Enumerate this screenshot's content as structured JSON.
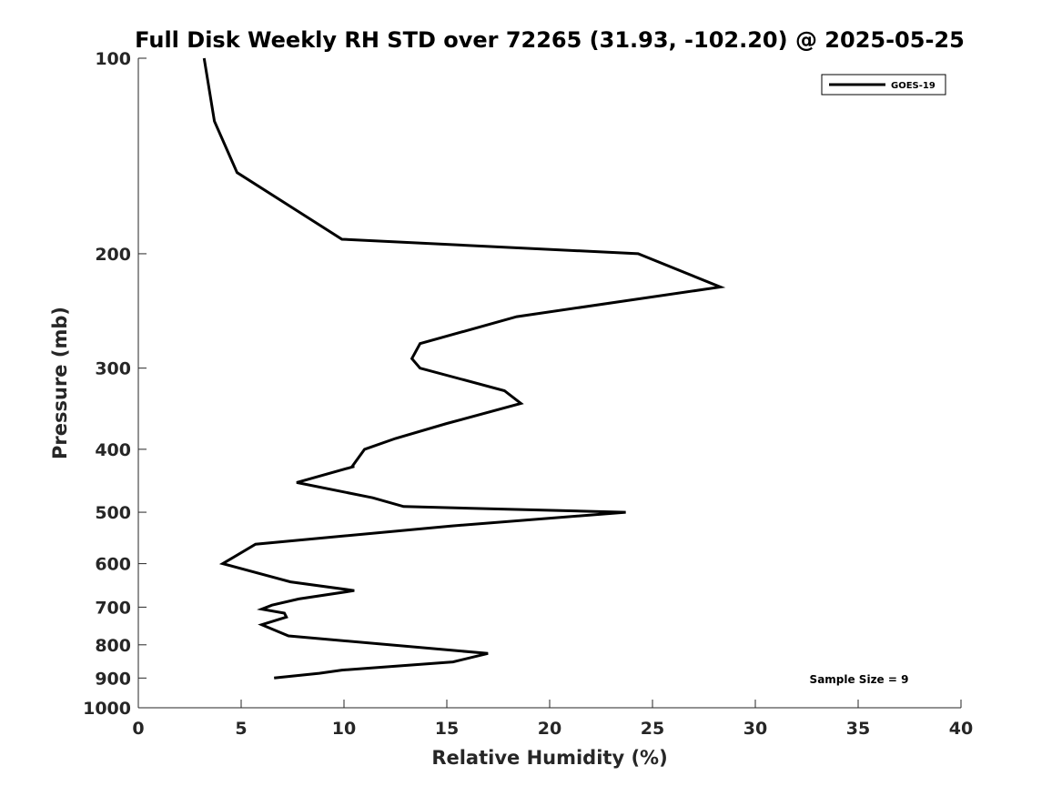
{
  "chart_data": {
    "type": "line",
    "title": "Full Disk Weekly RH STD over 72265 (31.93, -102.20) @ 2025-05-25",
    "xlabel": "Relative Humidity (%)",
    "ylabel": "Pressure (mb)",
    "xlim": [
      0,
      40
    ],
    "ylim": [
      100,
      1000
    ],
    "yscale": "log",
    "y_reversed": true,
    "grid": false,
    "x_ticks": [
      0,
      5,
      10,
      15,
      20,
      25,
      30,
      35,
      40
    ],
    "y_ticks": [
      100,
      200,
      300,
      400,
      500,
      600,
      700,
      800,
      900,
      1000
    ],
    "legend_position": "top-right",
    "series": [
      {
        "name": "GOES-19",
        "color": "#000000",
        "rh": [
          3.2,
          3.7,
          4.8,
          7.5,
          9.9,
          24.3,
          28.3,
          18.4,
          13.7,
          13.3,
          13.7,
          17.8,
          18.6,
          15.0,
          12.5,
          11.0,
          10.4,
          10.5,
          7.7,
          11.4,
          12.9,
          23.7,
          15.2,
          5.7,
          4.1,
          7.4,
          10.5,
          7.8,
          6.5,
          6.0,
          7.1,
          7.2,
          6.0,
          7.3,
          17.0,
          15.3,
          9.9,
          8.8,
          6.6
        ],
        "pressure": [
          100,
          125,
          150,
          170,
          190,
          200,
          225,
          250,
          275,
          290,
          300,
          325,
          340,
          365,
          385,
          400,
          425,
          425,
          450,
          475,
          490,
          500,
          525,
          560,
          600,
          640,
          660,
          680,
          695,
          705,
          715,
          725,
          745,
          775,
          825,
          850,
          875,
          885,
          900
        ]
      }
    ],
    "annotation": "Sample Size = 9"
  }
}
